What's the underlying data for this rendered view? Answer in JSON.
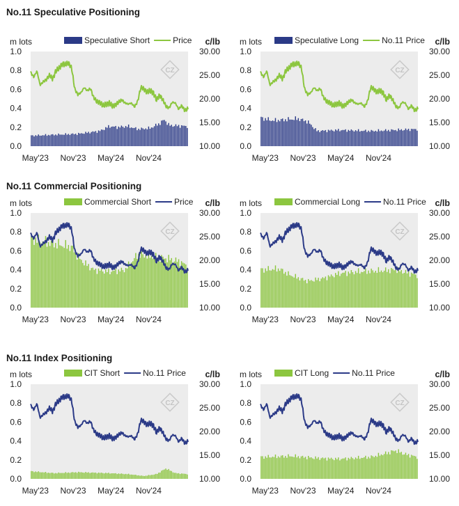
{
  "sections": [
    {
      "title": "No.11 Speculative Positioning"
    },
    {
      "title": "No.11 Commercial Positioning"
    },
    {
      "title": "No.11 Index Positioning"
    }
  ],
  "colors": {
    "price_line": "#8cc63f",
    "navy": "#2b3a87",
    "green_bars": "#8cc63f",
    "plot_bg": "#ececec"
  },
  "chart_data": [
    {
      "type": "bar+line",
      "left_unit": "m lots",
      "right_unit": "c/lb",
      "y_left_ticks": [
        "0.0",
        "0.2",
        "0.4",
        "0.6",
        "0.8",
        "1.0"
      ],
      "y_right_ticks": [
        "10.00",
        "15.00",
        "20.00",
        "25.00",
        "30.00"
      ],
      "x_ticks": [
        "May'23",
        "Nov'23",
        "May'24",
        "Nov'24"
      ],
      "ylim_left": [
        0,
        1.0
      ],
      "ylim_right": [
        10,
        30
      ],
      "bar_series": {
        "name": "Speculative Short",
        "color": "#2b3a87",
        "profile": "spec_short"
      },
      "line_series": {
        "name": "Price",
        "color": "#8cc63f"
      }
    },
    {
      "type": "bar+line",
      "left_unit": "m lots",
      "right_unit": "c/lb",
      "y_left_ticks": [
        "0.0",
        "0.2",
        "0.4",
        "0.6",
        "0.8",
        "1.0"
      ],
      "y_right_ticks": [
        "10.00",
        "15.00",
        "20.00",
        "25.00",
        "30.00"
      ],
      "x_ticks": [
        "May'23",
        "Nov'23",
        "May'24",
        "Nov'24"
      ],
      "ylim_left": [
        0,
        1.0
      ],
      "ylim_right": [
        10,
        30
      ],
      "bar_series": {
        "name": "Speculative Long",
        "color": "#2b3a87",
        "profile": "spec_long"
      },
      "line_series": {
        "name": "No.11 Price",
        "color": "#8cc63f"
      }
    },
    {
      "type": "bar+line",
      "left_unit": "m lots",
      "right_unit": "c/lb",
      "y_left_ticks": [
        "0.0",
        "0.2",
        "0.4",
        "0.6",
        "0.8",
        "1.0"
      ],
      "y_right_ticks": [
        "10.00",
        "15.00",
        "20.00",
        "25.00",
        "30.00"
      ],
      "x_ticks": [
        "May'23",
        "Nov'23",
        "May'24",
        "Nov'24"
      ],
      "ylim_left": [
        0,
        1.0
      ],
      "ylim_right": [
        10,
        30
      ],
      "bar_series": {
        "name": "Commercial Short",
        "color": "#8cc63f",
        "profile": "comm_short"
      },
      "line_series": {
        "name": "Price",
        "color": "#2b3a87"
      }
    },
    {
      "type": "bar+line",
      "left_unit": "m lots",
      "right_unit": "c/lb",
      "y_left_ticks": [
        "0.0",
        "0.2",
        "0.4",
        "0.6",
        "0.8",
        "1.0"
      ],
      "y_right_ticks": [
        "10.00",
        "15.00",
        "20.00",
        "25.00",
        "30.00"
      ],
      "x_ticks": [
        "May'23",
        "Nov'23",
        "May'24",
        "Nov'24"
      ],
      "ylim_left": [
        0,
        1.0
      ],
      "ylim_right": [
        10,
        30
      ],
      "bar_series": {
        "name": "Commercial Long",
        "color": "#8cc63f",
        "profile": "comm_long"
      },
      "line_series": {
        "name": "No.11 Price",
        "color": "#2b3a87"
      }
    },
    {
      "type": "bar+line",
      "left_unit": "m lots",
      "right_unit": "c/lb",
      "y_left_ticks": [
        "0.0",
        "0.2",
        "0.4",
        "0.6",
        "0.8",
        "1.0"
      ],
      "y_right_ticks": [
        "10.00",
        "15.00",
        "20.00",
        "25.00",
        "30.00"
      ],
      "x_ticks": [
        "May'23",
        "Nov'23",
        "May'24",
        "Nov'24"
      ],
      "ylim_left": [
        0,
        1.0
      ],
      "ylim_right": [
        10,
        30
      ],
      "bar_series": {
        "name": "CIT Short",
        "color": "#8cc63f",
        "profile": "cit_short"
      },
      "line_series": {
        "name": "No.11 Price",
        "color": "#2b3a87"
      }
    },
    {
      "type": "bar+line",
      "left_unit": "m lots",
      "right_unit": "c/lb",
      "y_left_ticks": [
        "0.0",
        "0.2",
        "0.4",
        "0.6",
        "0.8",
        "1.0"
      ],
      "y_right_ticks": [
        "10.00",
        "15.00",
        "20.00",
        "25.00",
        "30.00"
      ],
      "x_ticks": [
        "May'23",
        "Nov'23",
        "May'24",
        "Nov'24"
      ],
      "ylim_left": [
        0,
        1.0
      ],
      "ylim_right": [
        10,
        30
      ],
      "bar_series": {
        "name": "CIT Long",
        "color": "#8cc63f",
        "profile": "cit_long"
      },
      "line_series": {
        "name": "No.11 Price",
        "color": "#2b3a87"
      }
    }
  ],
  "price_series": [
    {
      "t": 0,
      "v": 25.6
    },
    {
      "t": 0.02,
      "v": 24.6
    },
    {
      "t": 0.04,
      "v": 25.9
    },
    {
      "t": 0.06,
      "v": 22.9
    },
    {
      "t": 0.08,
      "v": 23.6
    },
    {
      "t": 0.1,
      "v": 24.1
    },
    {
      "t": 0.12,
      "v": 25.0
    },
    {
      "t": 0.14,
      "v": 24.2
    },
    {
      "t": 0.16,
      "v": 25.9
    },
    {
      "t": 0.18,
      "v": 26.4
    },
    {
      "t": 0.2,
      "v": 27.4
    },
    {
      "t": 0.22,
      "v": 27.2
    },
    {
      "t": 0.24,
      "v": 27.6
    },
    {
      "t": 0.26,
      "v": 26.6
    },
    {
      "t": 0.28,
      "v": 22.1
    },
    {
      "t": 0.3,
      "v": 20.9
    },
    {
      "t": 0.32,
      "v": 21.3
    },
    {
      "t": 0.34,
      "v": 22.4
    },
    {
      "t": 0.36,
      "v": 21.7
    },
    {
      "t": 0.38,
      "v": 22.2
    },
    {
      "t": 0.4,
      "v": 20.3
    },
    {
      "t": 0.42,
      "v": 19.4
    },
    {
      "t": 0.44,
      "v": 19.3
    },
    {
      "t": 0.46,
      "v": 18.5
    },
    {
      "t": 0.48,
      "v": 18.9
    },
    {
      "t": 0.5,
      "v": 19.1
    },
    {
      "t": 0.52,
      "v": 18.4
    },
    {
      "t": 0.54,
      "v": 18.8
    },
    {
      "t": 0.56,
      "v": 19.3
    },
    {
      "t": 0.58,
      "v": 19.8
    },
    {
      "t": 0.6,
      "v": 19.1
    },
    {
      "t": 0.62,
      "v": 18.9
    },
    {
      "t": 0.64,
      "v": 19.1
    },
    {
      "t": 0.66,
      "v": 18.3
    },
    {
      "t": 0.68,
      "v": 19.5
    },
    {
      "t": 0.7,
      "v": 22.4
    },
    {
      "t": 0.72,
      "v": 22.1
    },
    {
      "t": 0.74,
      "v": 21.4
    },
    {
      "t": 0.76,
      "v": 21.7
    },
    {
      "t": 0.78,
      "v": 21.3
    },
    {
      "t": 0.8,
      "v": 19.7
    },
    {
      "t": 0.82,
      "v": 20.8
    },
    {
      "t": 0.84,
      "v": 19.8
    },
    {
      "t": 0.86,
      "v": 18.4
    },
    {
      "t": 0.88,
      "v": 18.1
    },
    {
      "t": 0.9,
      "v": 19.3
    },
    {
      "t": 0.92,
      "v": 19.1
    },
    {
      "t": 0.94,
      "v": 17.8
    },
    {
      "t": 0.96,
      "v": 18.6
    },
    {
      "t": 0.98,
      "v": 17.5
    },
    {
      "t": 1,
      "v": 17.9
    }
  ],
  "bar_profiles": {
    "spec_short": [
      {
        "t": 0,
        "v": 0.11
      },
      {
        "t": 0.14,
        "v": 0.12
      },
      {
        "t": 0.3,
        "v": 0.13
      },
      {
        "t": 0.44,
        "v": 0.16
      },
      {
        "t": 0.5,
        "v": 0.21
      },
      {
        "t": 0.55,
        "v": 0.2
      },
      {
        "t": 0.62,
        "v": 0.21
      },
      {
        "t": 0.68,
        "v": 0.18
      },
      {
        "t": 0.76,
        "v": 0.19
      },
      {
        "t": 0.82,
        "v": 0.24
      },
      {
        "t": 0.85,
        "v": 0.28
      },
      {
        "t": 0.88,
        "v": 0.22
      },
      {
        "t": 1,
        "v": 0.21
      }
    ],
    "spec_long": [
      {
        "t": 0,
        "v": 0.3
      },
      {
        "t": 0.08,
        "v": 0.27
      },
      {
        "t": 0.24,
        "v": 0.29
      },
      {
        "t": 0.3,
        "v": 0.26
      },
      {
        "t": 0.36,
        "v": 0.16
      },
      {
        "t": 0.5,
        "v": 0.17
      },
      {
        "t": 0.7,
        "v": 0.16
      },
      {
        "t": 0.85,
        "v": 0.17
      },
      {
        "t": 1,
        "v": 0.18
      }
    ],
    "comm_short": [
      {
        "t": 0,
        "v": 0.73
      },
      {
        "t": 0.1,
        "v": 0.69
      },
      {
        "t": 0.2,
        "v": 0.66
      },
      {
        "t": 0.26,
        "v": 0.64
      },
      {
        "t": 0.32,
        "v": 0.5
      },
      {
        "t": 0.4,
        "v": 0.4
      },
      {
        "t": 0.5,
        "v": 0.38
      },
      {
        "t": 0.6,
        "v": 0.4
      },
      {
        "t": 0.68,
        "v": 0.56
      },
      {
        "t": 0.78,
        "v": 0.54
      },
      {
        "t": 0.86,
        "v": 0.52
      },
      {
        "t": 0.94,
        "v": 0.49
      },
      {
        "t": 1,
        "v": 0.44
      }
    ],
    "comm_long": [
      {
        "t": 0,
        "v": 0.4
      },
      {
        "t": 0.12,
        "v": 0.41
      },
      {
        "t": 0.18,
        "v": 0.35
      },
      {
        "t": 0.3,
        "v": 0.28
      },
      {
        "t": 0.4,
        "v": 0.31
      },
      {
        "t": 0.5,
        "v": 0.36
      },
      {
        "t": 0.62,
        "v": 0.38
      },
      {
        "t": 0.76,
        "v": 0.39
      },
      {
        "t": 0.86,
        "v": 0.4
      },
      {
        "t": 1,
        "v": 0.34
      }
    ],
    "cit_short": [
      {
        "t": 0,
        "v": 0.08
      },
      {
        "t": 0.15,
        "v": 0.06
      },
      {
        "t": 0.3,
        "v": 0.07
      },
      {
        "t": 0.5,
        "v": 0.06
      },
      {
        "t": 0.62,
        "v": 0.05
      },
      {
        "t": 0.72,
        "v": 0.03
      },
      {
        "t": 0.8,
        "v": 0.05
      },
      {
        "t": 0.86,
        "v": 0.11
      },
      {
        "t": 0.92,
        "v": 0.06
      },
      {
        "t": 1,
        "v": 0.05
      }
    ],
    "cit_long": [
      {
        "t": 0,
        "v": 0.23
      },
      {
        "t": 0.2,
        "v": 0.24
      },
      {
        "t": 0.35,
        "v": 0.22
      },
      {
        "t": 0.5,
        "v": 0.21
      },
      {
        "t": 0.6,
        "v": 0.22
      },
      {
        "t": 0.7,
        "v": 0.23
      },
      {
        "t": 0.8,
        "v": 0.27
      },
      {
        "t": 0.86,
        "v": 0.3
      },
      {
        "t": 0.92,
        "v": 0.26
      },
      {
        "t": 1,
        "v": 0.23
      }
    ]
  }
}
